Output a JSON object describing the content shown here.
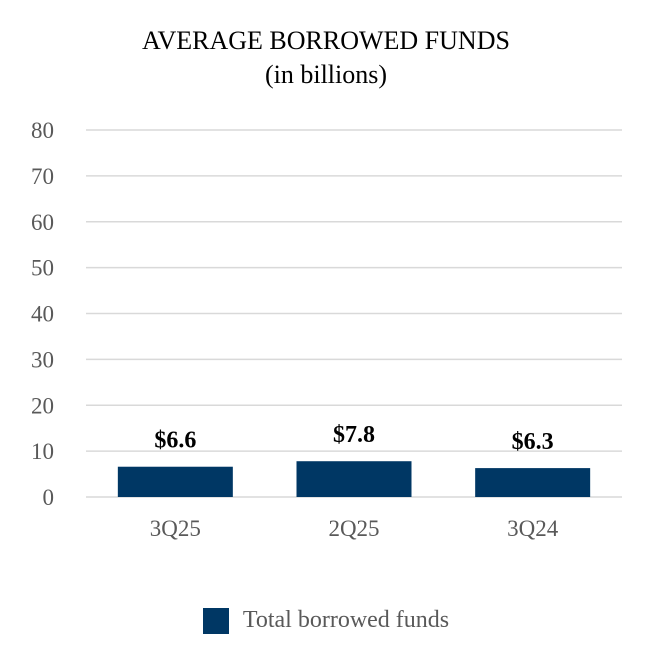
{
  "chart_data": {
    "type": "bar",
    "title": "AVERAGE BORROWED FUNDS",
    "subtitle": "(in billions)",
    "categories": [
      "3Q25",
      "2Q25",
      "3Q24"
    ],
    "series": [
      {
        "name": "Total borrowed funds",
        "values": [
          6.6,
          7.8,
          6.3
        ],
        "data_labels": [
          "$6.6",
          "$7.8",
          "$6.3"
        ],
        "color": "#003764"
      }
    ],
    "ylim": [
      0,
      80
    ],
    "yticks": [
      "0",
      "10",
      "20",
      "30",
      "40",
      "50",
      "60",
      "70",
      "80"
    ],
    "grid": true,
    "legend_position": "bottom"
  }
}
